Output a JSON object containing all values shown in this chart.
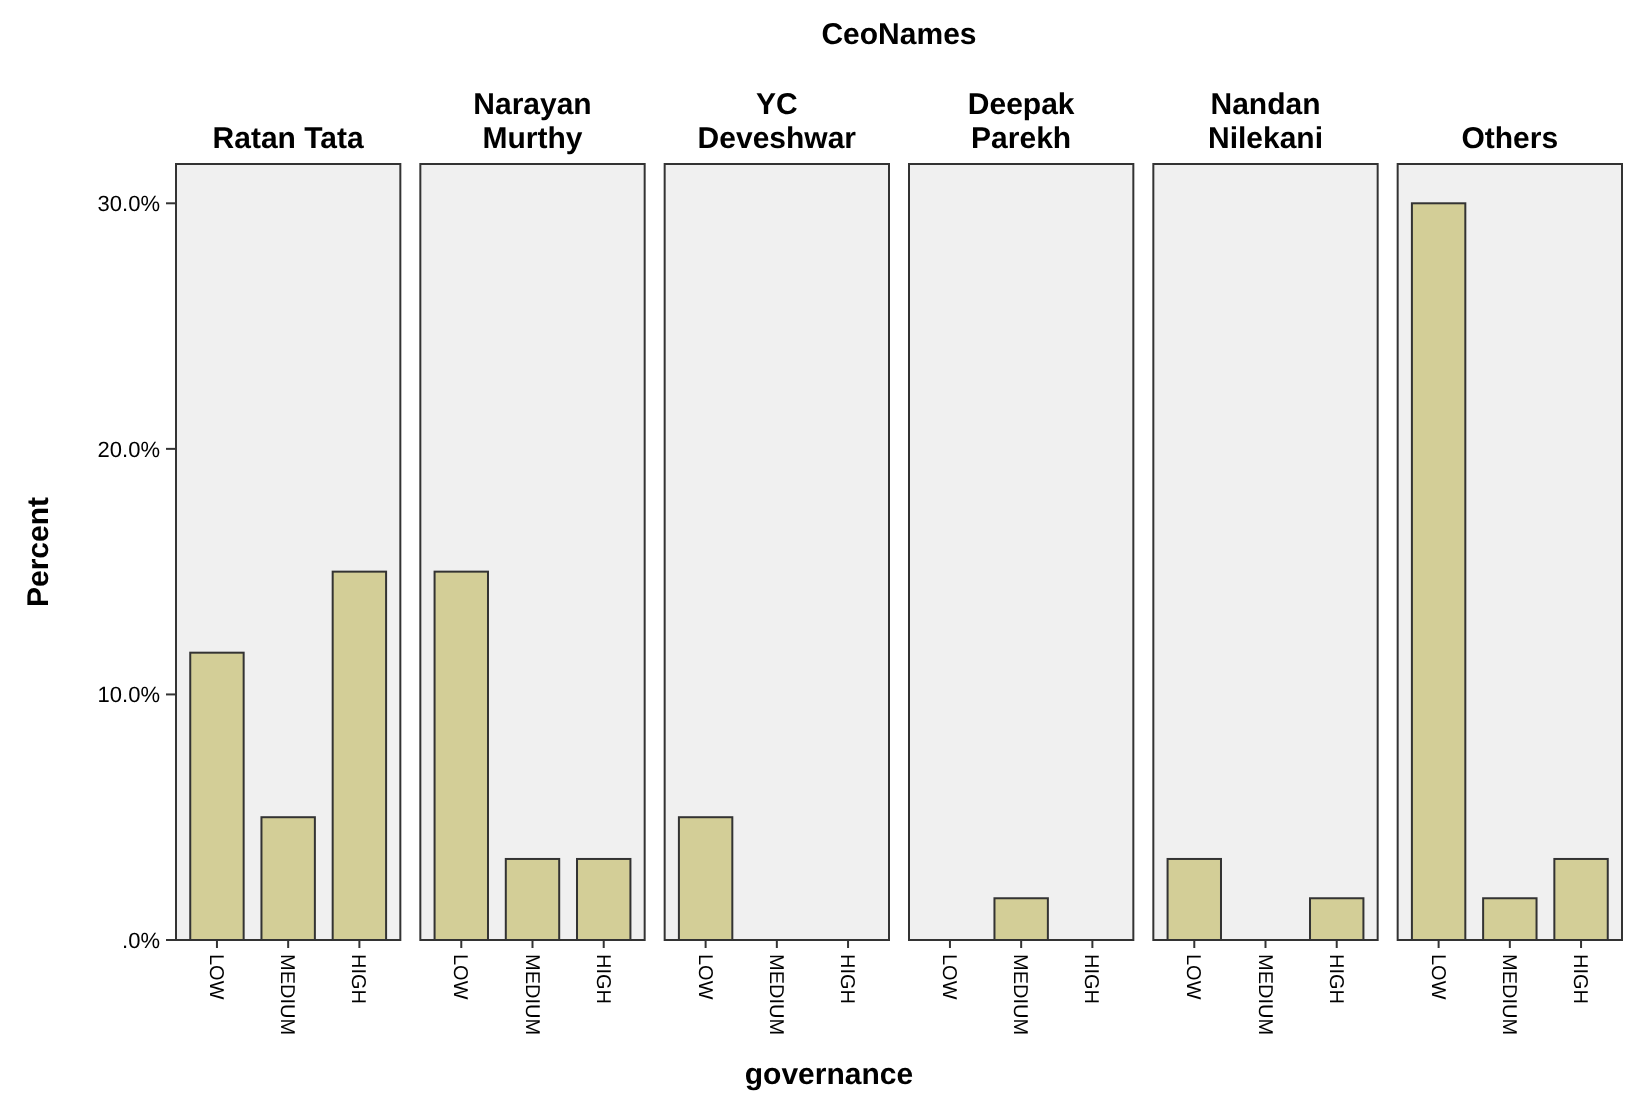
{
  "chart_data": [
    {
      "type": "bar",
      "title": "Ratan Tata",
      "categories": [
        "LOW",
        "MEDIUM",
        "HIGH"
      ],
      "values": [
        11.7,
        5.0,
        15.0
      ],
      "color": "#d3ce97",
      "ylim": [
        0,
        31.6
      ],
      "yticks": [
        {
          "value": 0,
          "label": ".0%"
        },
        {
          "value": 10,
          "label": "10.0%"
        },
        {
          "value": 20,
          "label": "20.0%"
        },
        {
          "value": 30,
          "label": "30.0%"
        }
      ],
      "ylabel": "Percent",
      "annotations": [
        "CeoNames"
      ]
    },
    {
      "type": "bar",
      "title": "Narayan Murthy",
      "categories": [
        "LOW",
        "MEDIUM",
        "HIGH"
      ],
      "values": [
        15.0,
        3.3,
        3.3
      ],
      "color": "#d3ce97",
      "ylim": [
        0,
        31.6
      ],
      "tick_labels": "x"
    },
    {
      "type": "bar",
      "title": "YC Deveshwar",
      "categories": [
        "LOW",
        "MEDIUM",
        "HIGH"
      ],
      "values": [
        5.0,
        0,
        0
      ],
      "color": "#d3ce97",
      "ylim": [
        0,
        31.6
      ],
      "tick_labels": "x",
      "xlabel": "governance"
    },
    {
      "type": "bar",
      "title": "Deepak Parekh",
      "categories": [
        "LOW",
        "MEDIUM",
        "HIGH"
      ],
      "values": [
        0,
        1.7,
        0
      ],
      "color": "#d3ce97",
      "ylim": [
        0,
        31.6
      ],
      "tick_labels": "x"
    },
    {
      "type": "bar",
      "title": "Nandan Nilekani",
      "categories": [
        "LOW",
        "MEDIUM",
        "HIGH"
      ],
      "values": [
        3.3,
        0,
        1.7
      ],
      "color": "#d3ce97",
      "ylim": [
        0,
        31.6
      ],
      "tick_labels": "x"
    },
    {
      "type": "bar",
      "title": "Others",
      "categories": [
        "LOW",
        "MEDIUM",
        "HIGH"
      ],
      "values": [
        30.0,
        1.7,
        3.3
      ],
      "color": "#d3ce97",
      "ylim": [
        0,
        31.6
      ],
      "tick_labels": "x"
    }
  ]
}
